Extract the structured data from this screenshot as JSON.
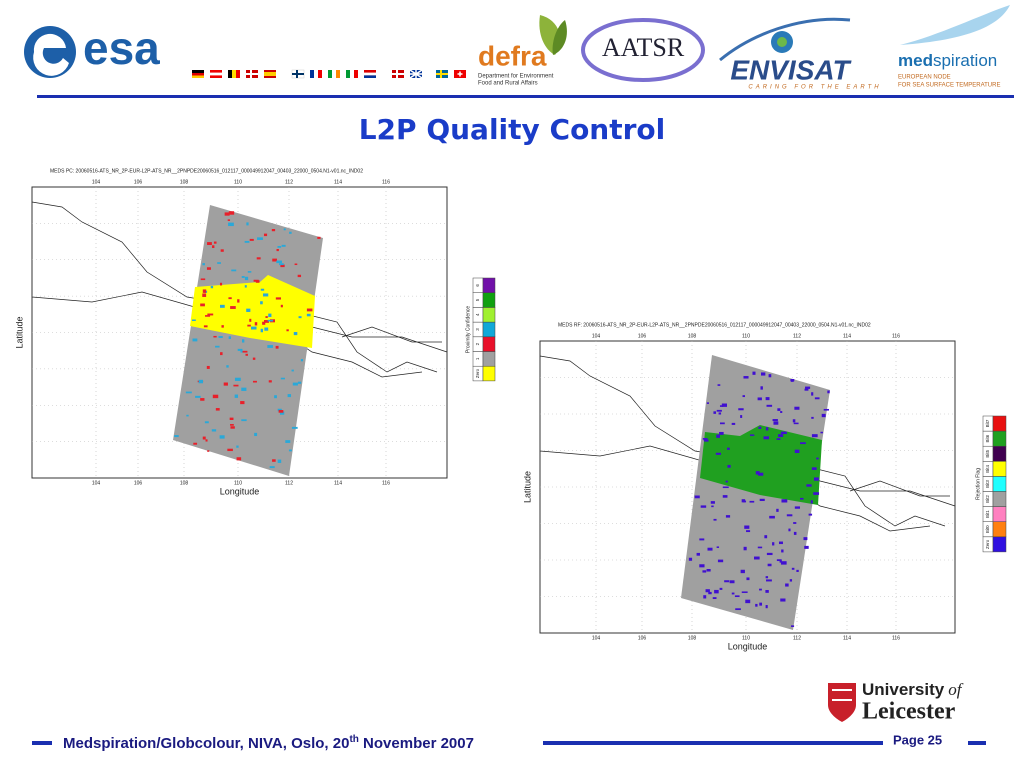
{
  "header": {
    "esa": "esa",
    "defra": "defra",
    "defra_sub_1": "Department for Environment",
    "defra_sub_2": "Food and Rural Affairs",
    "aatsr": "AATSR",
    "envisat": "ENVISAT",
    "envisat_tagline": "CARING FOR THE EARTH",
    "med_1": "med",
    "med_2": "spiration",
    "med_sub_1": "EUROPEAN NODE",
    "med_sub_2": "FOR SEA SURFACE TEMPERATURE"
  },
  "title": "L2P Quality Control",
  "maps": [
    {
      "title": "MEDS PC: 20060516-ATS_NR_2P-EUR-L2P-ATS_NR__2PNPDE20060516_012117_000049912047_00403_22000_0504.N1-v01.nc_IND02",
      "x_ticks": [
        "104",
        "106",
        "108",
        "110",
        "112",
        "114",
        "116"
      ],
      "x_label": "Longitude",
      "y_label": "Latitude",
      "legend_title": "Proximity Confidence",
      "legend_labels": [
        "Zero",
        "1",
        "2",
        "3",
        "4",
        "5",
        "6"
      ]
    },
    {
      "title": "MEDS RF: 20060516-ATS_NR_2P-EUR-L2P-ATS_NR__2PNPDE20060516_012117_000049912047_00403_22000_0504.N1-v01.nc_IND02",
      "x_ticks": [
        "104",
        "106",
        "108",
        "110",
        "112",
        "114",
        "116"
      ],
      "x_label": "Longitude",
      "y_label": "Latitude",
      "legend_title": "Rejection Flag",
      "legend_labels": [
        "Zero",
        "Bit0",
        "Bit1",
        "Bit2",
        "Bit3",
        "Bit4",
        "Bit5",
        "Bit6",
        "Bit7"
      ]
    }
  ],
  "logo": {
    "university": "University",
    "of": "of",
    "leicester": "Leicester"
  },
  "footer": {
    "text_1": "Medspiration/Globcolour, NIVA, Oslo, 20",
    "sup": "th",
    "text_2": " November 2007",
    "page": "Page 25"
  }
}
